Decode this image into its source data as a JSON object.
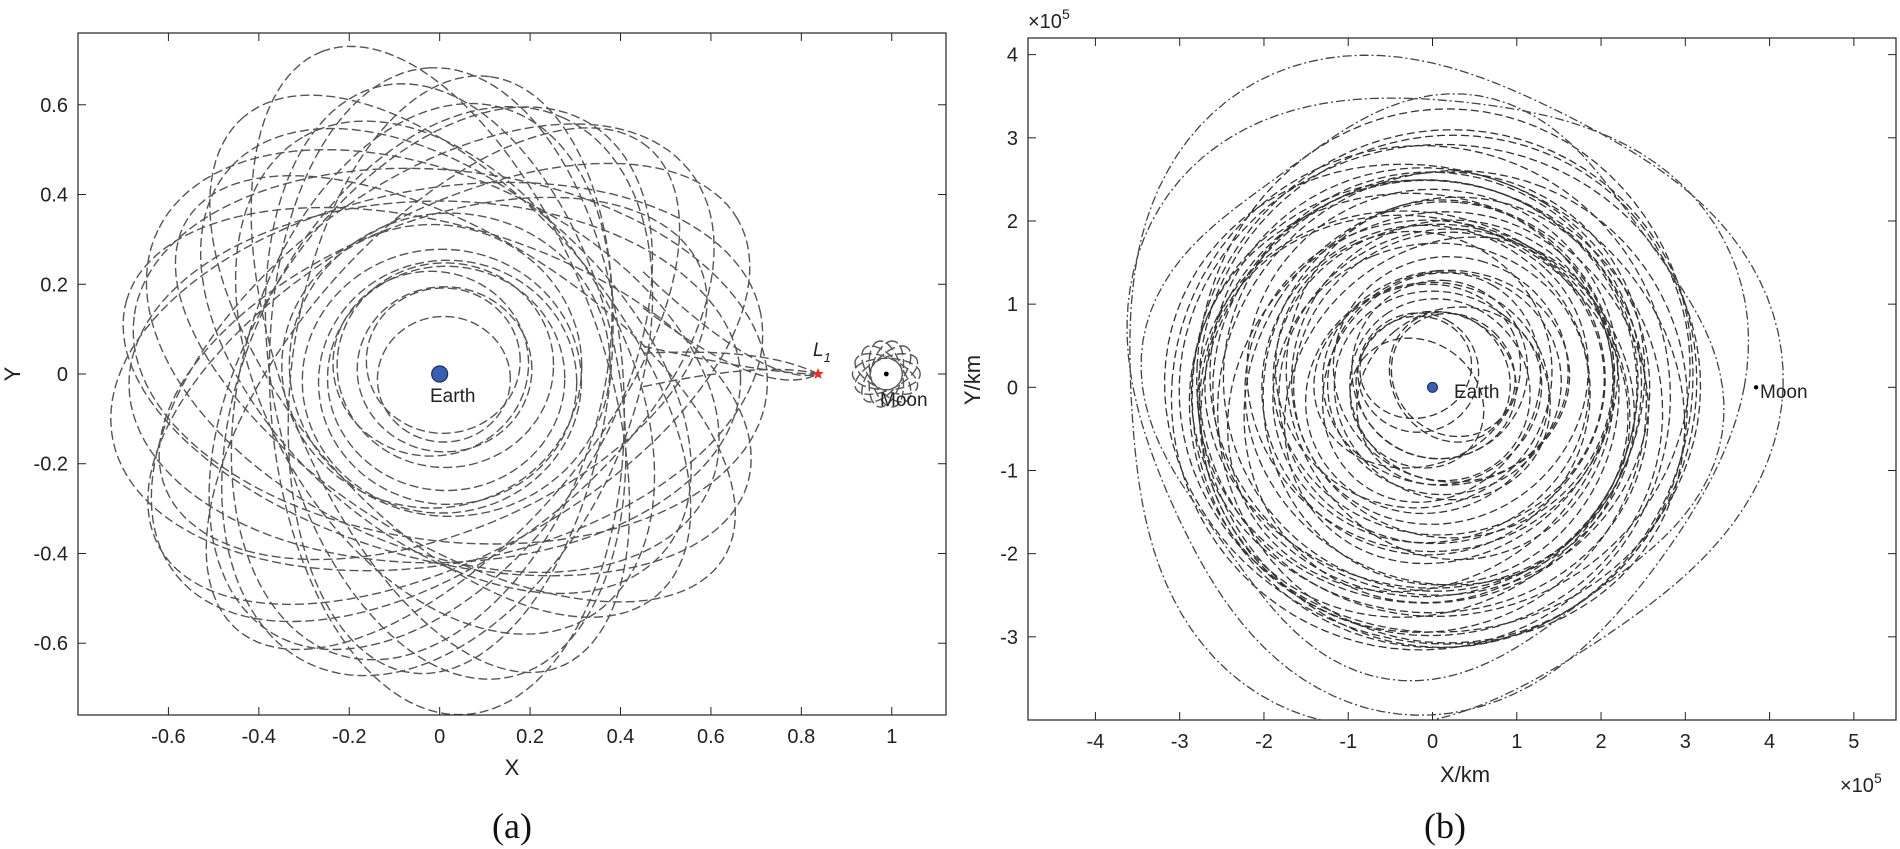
{
  "chart_data": [
    {
      "type": "line",
      "panel_caption": "(a)",
      "xlabel": "X",
      "ylabel": "Y",
      "xlim": [
        -0.8,
        1.12
      ],
      "ylim": [
        -0.76,
        0.76
      ],
      "xticks": [
        -0.6,
        -0.4,
        -0.2,
        0,
        0.2,
        0.4,
        0.6,
        0.8,
        1
      ],
      "xtick_labels": [
        "-0.6",
        "-0.4",
        "-0.2",
        "0",
        "0.2",
        "0.4",
        "0.6",
        "0.8",
        "1"
      ],
      "yticks": [
        -0.6,
        -0.4,
        -0.2,
        0,
        0.2,
        0.4,
        0.6
      ],
      "ytick_labels": [
        "-0.6",
        "-0.4",
        "-0.2",
        "0",
        "0.2",
        "0.4",
        "0.6"
      ],
      "grid": false,
      "annotations": [
        {
          "text": "Earth",
          "x": 0,
          "y": 0
        },
        {
          "text": "Moon",
          "x": 0.988,
          "y": 0
        },
        {
          "text": "L",
          "subscript": "1",
          "x": 0.837,
          "y": 0
        }
      ],
      "series": [
        {
          "marker": "filled-circle",
          "color": "#3a5fb0",
          "x": [
            0
          ],
          "y": [
            0
          ]
        },
        {
          "marker": "star",
          "color": "#e8302a",
          "x": [
            0.837
          ],
          "y": [
            0
          ]
        },
        {
          "marker": "dot",
          "color": "#000000",
          "x": [
            0.988
          ],
          "y": [
            0
          ]
        }
      ]
    },
    {
      "type": "line",
      "panel_caption": "(b)",
      "xlabel": "X/km",
      "ylabel": "Y/km",
      "x_scale_label": "×10",
      "x_scale_exp": "5",
      "y_scale_label": "×10",
      "y_scale_exp": "5",
      "xlim": [
        -4.8,
        5.5
      ],
      "ylim": [
        -4.0,
        4.2
      ],
      "xticks": [
        -4,
        -3,
        -2,
        -1,
        0,
        1,
        2,
        3,
        4,
        5
      ],
      "xtick_labels": [
        "-4",
        "-3",
        "-2",
        "-1",
        "0",
        "1",
        "2",
        "3",
        "4",
        "5"
      ],
      "yticks": [
        -3,
        -2,
        -1,
        0,
        1,
        2,
        3,
        4
      ],
      "ytick_labels": [
        "-3",
        "-2",
        "-1",
        "0",
        "1",
        "2",
        "3",
        "4"
      ],
      "grid": false,
      "annotations": [
        {
          "text": "Earth",
          "x": 0,
          "y": 0
        },
        {
          "text": "Moon",
          "x": 3.84,
          "y": 0
        }
      ],
      "series": [
        {
          "marker": "filled-circle",
          "color": "#3a5fb0",
          "x": [
            0
          ],
          "y": [
            0
          ]
        },
        {
          "marker": "dot",
          "color": "#000000",
          "x": [
            3.84
          ],
          "y": [
            0
          ]
        }
      ]
    }
  ]
}
